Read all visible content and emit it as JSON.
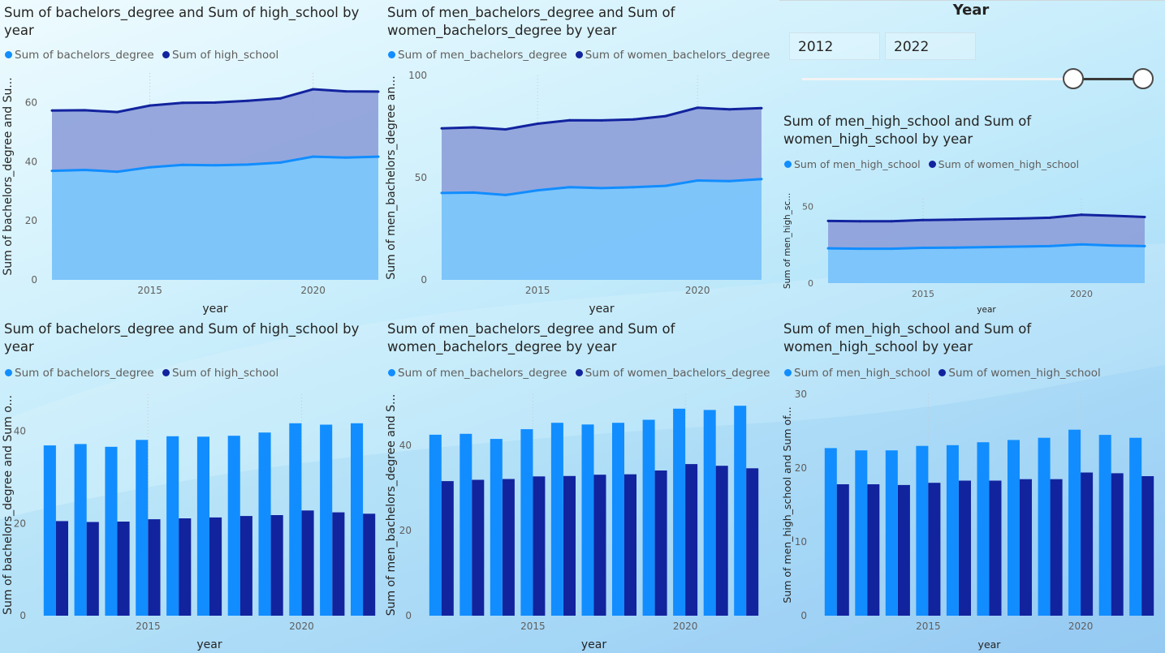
{
  "colors": {
    "light": "#118dff",
    "dark": "#12239e",
    "light_fill": "#7cc6fb",
    "dark_fill": "#8d9fd9"
  },
  "slicer": {
    "title": "Year",
    "start": "2012",
    "end": "2022",
    "min_year": 2012,
    "max_year": 2022,
    "selected_start": 2021,
    "selected_end": 2022
  },
  "chart_data": [
    {
      "id": "c1",
      "type": "area",
      "title": "Sum of bachelors_degree and Sum of high_school by year",
      "xlabel": "year",
      "ylabel": "Sum of bachelors_degree and Su...",
      "x": [
        2012,
        2013,
        2014,
        2015,
        2016,
        2017,
        2018,
        2019,
        2020,
        2021,
        2022
      ],
      "xticks": [
        2015,
        2020
      ],
      "ylim": [
        0,
        70
      ],
      "yticks": [
        0,
        20,
        40,
        60
      ],
      "grid": true,
      "legend": "top-left",
      "series": [
        {
          "name": "Sum of bachelors_degree",
          "values": [
            36.9,
            37.2,
            36.6,
            38.1,
            38.9,
            38.8,
            39.0,
            39.7,
            41.7,
            41.4,
            41.7
          ]
        },
        {
          "name": "Sum of high_school",
          "values": [
            57.3,
            57.4,
            56.8,
            59.0,
            59.9,
            60.0,
            60.6,
            61.4,
            64.5,
            63.8,
            63.7
          ]
        }
      ]
    },
    {
      "id": "c2",
      "type": "area",
      "title": "Sum of men_bachelors_degree and Sum of women_bachelors_degree by year",
      "xlabel": "year",
      "ylabel": "Sum of men_bachelors_degree an...",
      "x": [
        2012,
        2013,
        2014,
        2015,
        2016,
        2017,
        2018,
        2019,
        2020,
        2021,
        2022
      ],
      "xticks": [
        2015,
        2020
      ],
      "ylim": [
        0,
        100
      ],
      "yticks": [
        0,
        50,
        100
      ],
      "grid": true,
      "legend": "top-left",
      "series": [
        {
          "name": "Sum of men_bachelors_degree",
          "values": [
            42.5,
            42.7,
            41.5,
            43.8,
            45.3,
            44.9,
            45.3,
            46.0,
            48.6,
            48.3,
            49.3
          ]
        },
        {
          "name": "Sum of women_bachelors_degree",
          "values": [
            74.1,
            74.6,
            73.6,
            76.4,
            78.1,
            78.0,
            78.5,
            80.1,
            84.2,
            83.4,
            84.0
          ]
        }
      ]
    },
    {
      "id": "c3",
      "type": "area",
      "title": "Sum of men_high_school and Sum of women_high_school by year",
      "xlabel": "year",
      "ylabel": "Sum of men_high_sc...",
      "x": [
        2012,
        2013,
        2014,
        2015,
        2016,
        2017,
        2018,
        2019,
        2020,
        2021,
        2022
      ],
      "xticks": [
        2015,
        2020
      ],
      "ylim": [
        0,
        55
      ],
      "yticks": [
        0,
        50
      ],
      "grid": true,
      "legend": "top-left",
      "series": [
        {
          "name": "Sum of men_high_school",
          "values": [
            22.7,
            22.4,
            22.4,
            23.0,
            23.1,
            23.5,
            23.8,
            24.1,
            25.2,
            24.5,
            24.1
          ]
        },
        {
          "name": "Sum of women_high_school",
          "values": [
            40.5,
            40.3,
            40.3,
            41.1,
            41.4,
            41.8,
            42.1,
            42.6,
            44.6,
            43.9,
            43.1
          ]
        }
      ]
    },
    {
      "id": "c4",
      "type": "bar",
      "title": "Sum of bachelors_degree and Sum of high_school by year",
      "xlabel": "year",
      "ylabel": "Sum of bachelors_degree and Sum o...",
      "x": [
        2012,
        2013,
        2014,
        2015,
        2016,
        2017,
        2018,
        2019,
        2020,
        2021,
        2022
      ],
      "xticks": [
        2015,
        2020
      ],
      "ylim": [
        0,
        48
      ],
      "yticks": [
        0,
        20,
        40
      ],
      "grid": true,
      "legend": "top-left",
      "series": [
        {
          "name": "Sum of bachelors_degree",
          "values": [
            36.9,
            37.2,
            36.6,
            38.1,
            38.9,
            38.8,
            39.0,
            39.7,
            41.7,
            41.4,
            41.7
          ]
        },
        {
          "name": "Sum of high_school",
          "values": [
            20.5,
            20.3,
            20.4,
            20.9,
            21.1,
            21.3,
            21.6,
            21.8,
            22.8,
            22.4,
            22.1
          ]
        }
      ]
    },
    {
      "id": "c5",
      "type": "bar",
      "title": "Sum of men_bachelors_degree and Sum of women_bachelors_degree by year",
      "xlabel": "year",
      "ylabel": "Sum of men_bachelors_degree and S...",
      "x": [
        2012,
        2013,
        2014,
        2015,
        2016,
        2017,
        2018,
        2019,
        2020,
        2021,
        2022
      ],
      "xticks": [
        2015,
        2020
      ],
      "ylim": [
        0,
        52
      ],
      "yticks": [
        0,
        20,
        40
      ],
      "grid": true,
      "legend": "top-left",
      "series": [
        {
          "name": "Sum of men_bachelors_degree",
          "values": [
            42.5,
            42.7,
            41.5,
            43.8,
            45.3,
            44.9,
            45.3,
            46.0,
            48.6,
            48.3,
            49.3
          ]
        },
        {
          "name": "Sum of women_bachelors_degree",
          "values": [
            31.6,
            31.9,
            32.1,
            32.7,
            32.8,
            33.1,
            33.2,
            34.1,
            35.6,
            35.2,
            34.6
          ]
        }
      ]
    },
    {
      "id": "c6",
      "type": "bar",
      "title": "Sum of men_high_school and Sum of women_high_school by year",
      "xlabel": "year",
      "ylabel": "Sum of men_high_school and Sum of...",
      "x": [
        2012,
        2013,
        2014,
        2015,
        2016,
        2017,
        2018,
        2019,
        2020,
        2021,
        2022
      ],
      "xticks": [
        2015,
        2020
      ],
      "ylim": [
        0,
        30
      ],
      "yticks": [
        0,
        10,
        20,
        30
      ],
      "grid": true,
      "legend": "top-left",
      "series": [
        {
          "name": "Sum of men_high_school",
          "values": [
            22.7,
            22.4,
            22.4,
            23.0,
            23.1,
            23.5,
            23.8,
            24.1,
            25.2,
            24.5,
            24.1
          ]
        },
        {
          "name": "Sum of women_high_school",
          "values": [
            17.8,
            17.8,
            17.7,
            18.0,
            18.3,
            18.3,
            18.5,
            18.5,
            19.4,
            19.3,
            18.9
          ]
        }
      ]
    }
  ]
}
